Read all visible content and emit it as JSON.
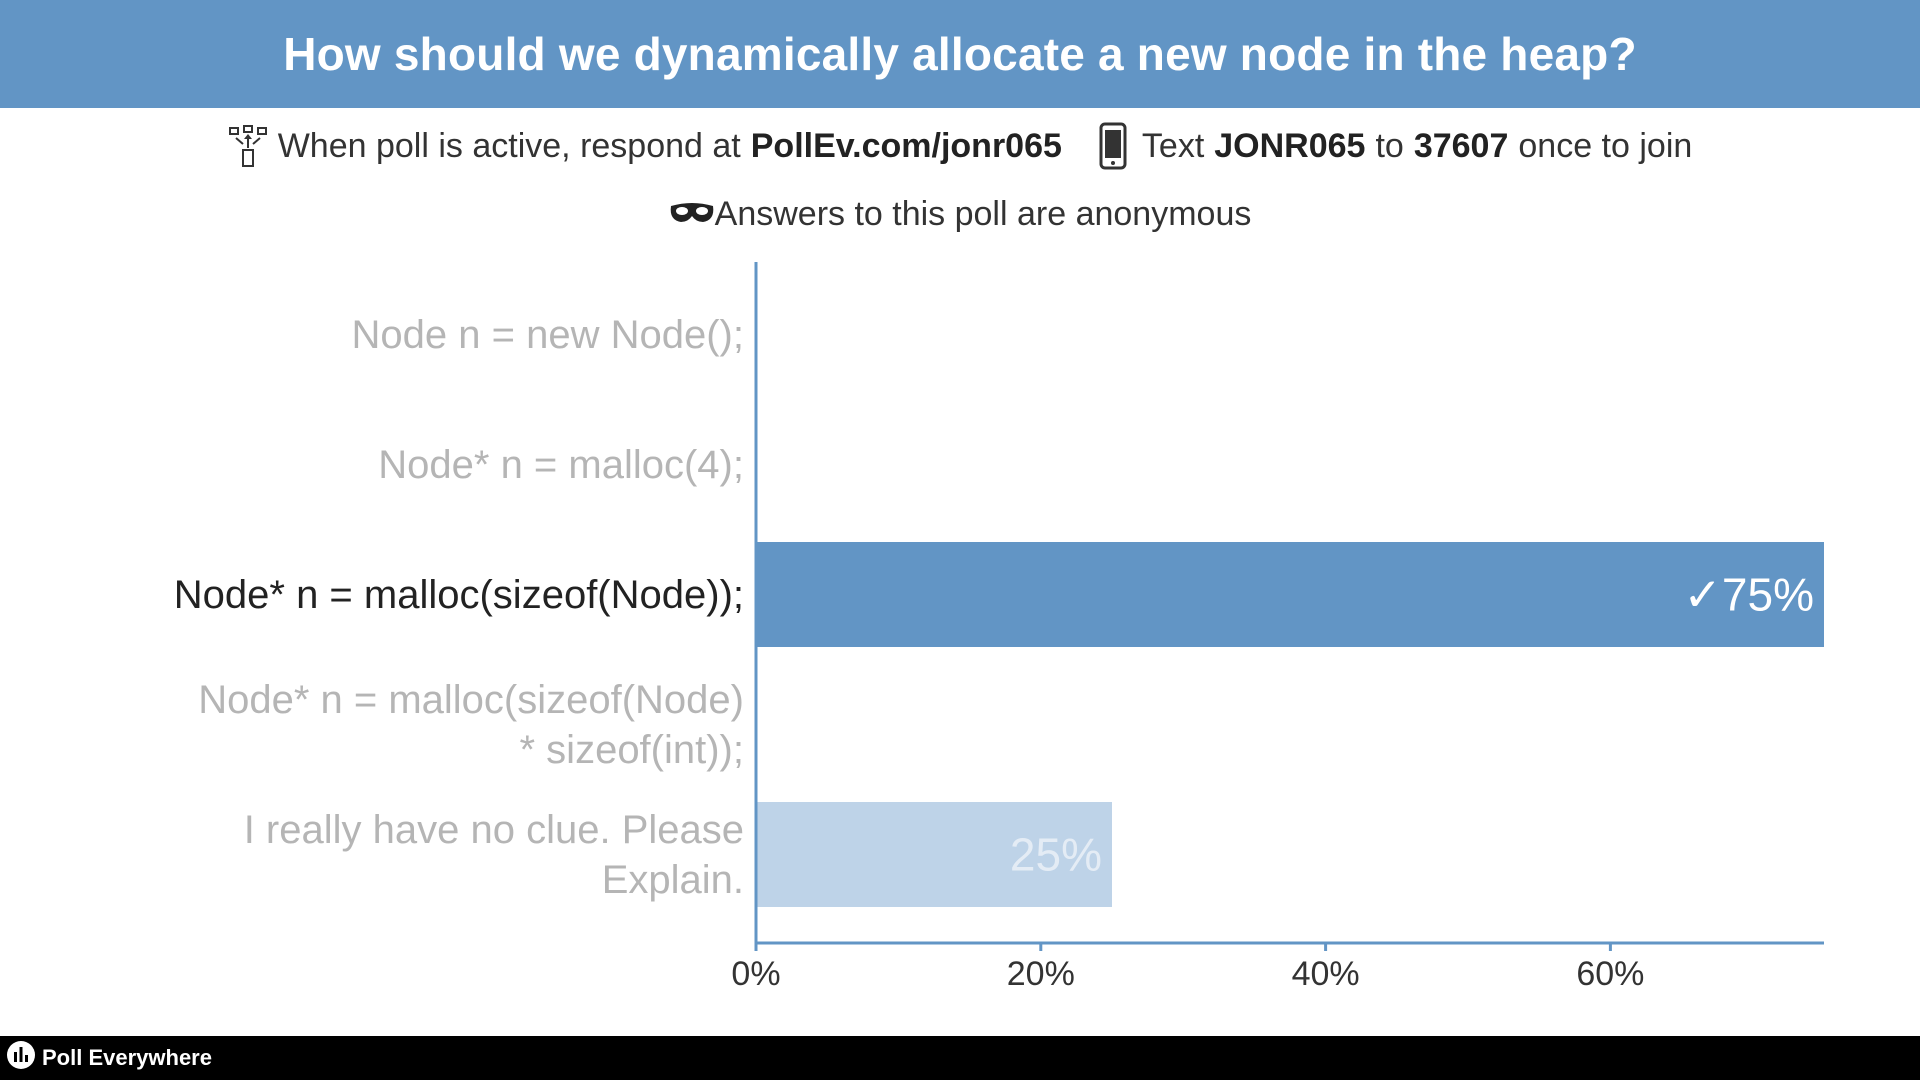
{
  "header": {
    "title": "How should we dynamically allocate a new node in the heap?"
  },
  "instructions": {
    "part1": "When poll is active, respond at",
    "url": "PollEv.com/jonr065",
    "part2": "Text",
    "code": "JONR065",
    "part3": "to",
    "number": "37607",
    "part4": "once to join",
    "icons": [
      "web-respond-icon",
      "phone-icon"
    ]
  },
  "anonymous": {
    "text": "Answers to this poll are anonymous",
    "icon": "mask-icon"
  },
  "chart_data": {
    "type": "bar",
    "orientation": "horizontal",
    "categories": [
      [
        "Node n = new Node();"
      ],
      [
        "Node* n = malloc(4);"
      ],
      [
        "Node* n = malloc(sizeof(Node));"
      ],
      [
        "Node* n = malloc(sizeof(Node)",
        "* sizeof(int));"
      ],
      [
        "I really have no clue. Please",
        "Explain."
      ]
    ],
    "values": [
      0,
      0,
      75,
      0,
      25
    ],
    "value_labels": [
      "",
      "",
      "✓75%",
      "",
      "25%"
    ],
    "correct": [
      false,
      false,
      true,
      false,
      false
    ],
    "xlim": [
      0,
      75
    ],
    "xticks": [
      0,
      20,
      40,
      60
    ],
    "xtick_labels": [
      "0%",
      "20%",
      "40%",
      "60%"
    ],
    "colors": {
      "correct": "#6295c5",
      "other": "#bed3e8",
      "axis": "#6295c5"
    },
    "grid": false
  },
  "footer": {
    "brand": "Poll Everywhere",
    "icon": "poll-everywhere-logo-icon"
  }
}
